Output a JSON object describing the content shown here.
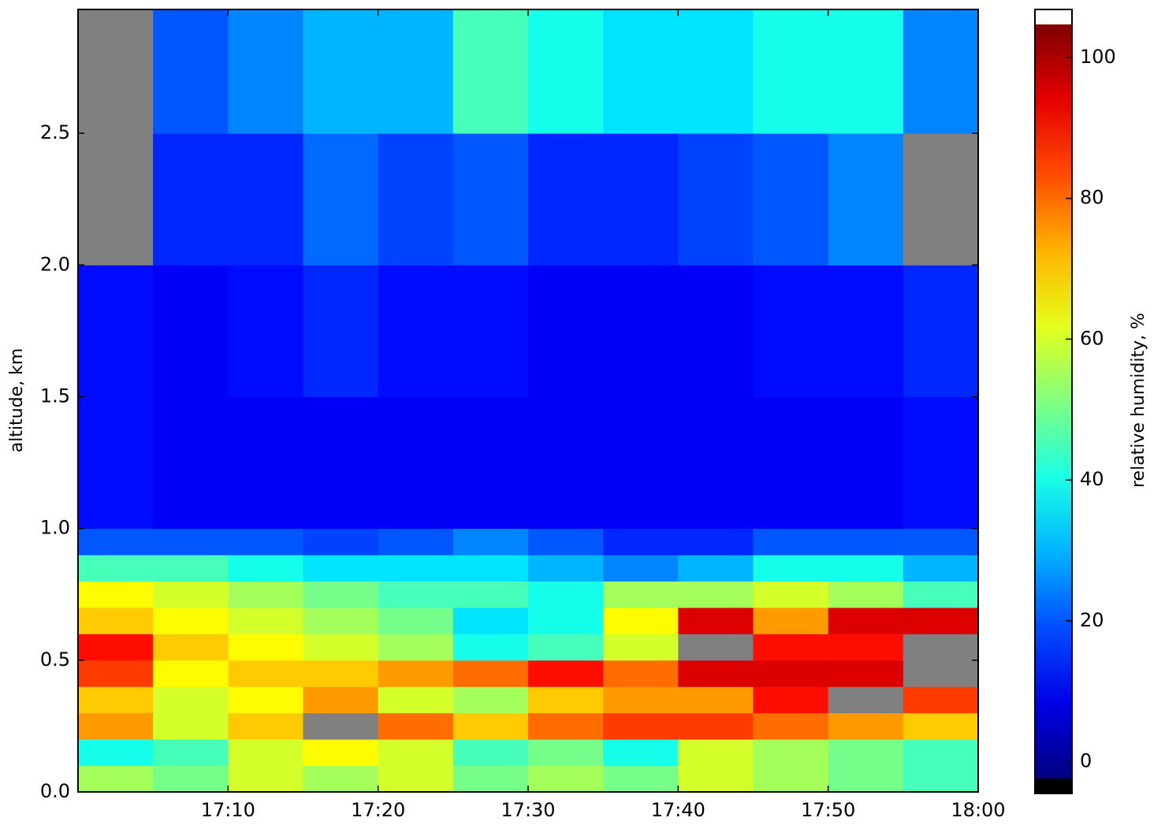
{
  "chart_data": {
    "type": "heatmap",
    "xlabel": null,
    "ylabel": "altitude, km",
    "colorbar_label": "relative humidity, %",
    "colormap": "jet",
    "missing_color": "#808080",
    "under_color": "#000000",
    "over_color": "#ffffff",
    "x_edges": [
      "17:00",
      "17:05",
      "17:10",
      "17:15",
      "17:20",
      "17:25",
      "17:30",
      "17:35",
      "17:40",
      "17:45",
      "17:50",
      "17:55",
      "18:00"
    ],
    "y_edges": [
      0,
      0.1,
      0.2,
      0.3,
      0.4,
      0.5,
      0.6,
      0.7,
      0.8,
      0.9,
      1.0,
      1.5,
      2.0,
      2.5,
      2.97
    ],
    "z": [
      [
        55,
        50,
        60,
        55,
        60,
        50,
        55,
        50,
        60,
        55,
        50,
        45
      ],
      [
        40,
        45,
        60,
        65,
        60,
        45,
        50,
        40,
        60,
        55,
        50,
        45
      ],
      [
        75,
        60,
        70,
        null,
        80,
        70,
        80,
        85,
        85,
        80,
        75,
        70
      ],
      [
        70,
        60,
        65,
        75,
        60,
        55,
        70,
        75,
        75,
        90,
        null,
        85
      ],
      [
        85,
        65,
        70,
        70,
        75,
        80,
        90,
        80,
        95,
        95,
        95,
        null
      ],
      [
        90,
        70,
        65,
        60,
        55,
        40,
        45,
        60,
        null,
        90,
        90,
        null
      ],
      [
        70,
        65,
        60,
        55,
        50,
        35,
        40,
        65,
        95,
        75,
        95,
        95
      ],
      [
        65,
        60,
        55,
        50,
        45,
        45,
        40,
        55,
        55,
        60,
        55,
        45
      ],
      [
        45,
        45,
        40,
        35,
        35,
        35,
        30,
        25,
        30,
        40,
        40,
        30
      ],
      [
        20,
        20,
        20,
        18,
        20,
        25,
        20,
        15,
        15,
        20,
        20,
        20
      ],
      [
        12,
        10,
        10,
        10,
        10,
        10,
        10,
        10,
        10,
        10,
        10,
        12
      ],
      [
        12,
        10,
        12,
        15,
        12,
        12,
        10,
        10,
        10,
        12,
        12,
        15
      ],
      [
        null,
        15,
        15,
        22,
        18,
        20,
        15,
        15,
        18,
        20,
        25,
        null
      ],
      [
        null,
        20,
        25,
        30,
        30,
        45,
        40,
        35,
        35,
        40,
        40,
        25
      ]
    ],
    "xlim": [
      "17:00",
      "18:00"
    ],
    "xticks": [
      "17:10",
      "17:20",
      "17:30",
      "17:40",
      "17:50",
      "18:00"
    ],
    "ylim": [
      0,
      2.97
    ],
    "yticks": [
      {
        "value": 0,
        "label": "0.0"
      },
      {
        "value": 0.5,
        "label": "0.5"
      },
      {
        "value": 1,
        "label": "1.0"
      },
      {
        "value": 1.5,
        "label": "1.5"
      },
      {
        "value": 2,
        "label": "2.0"
      },
      {
        "value": 2.5,
        "label": "2.5"
      }
    ],
    "clim": [
      -2.4,
      104.7
    ],
    "cticks": [
      0,
      20,
      40,
      60,
      80,
      100
    ]
  }
}
